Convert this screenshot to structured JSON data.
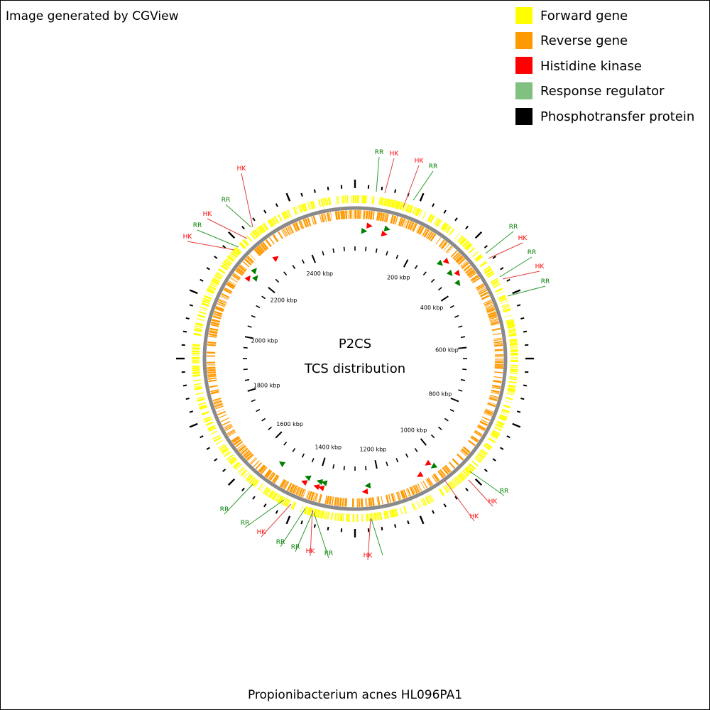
{
  "credit": "Image generated by CGView",
  "organism": "Propionibacterium acnes HL096PA1",
  "center_title": "P2CS",
  "center_subtitle": "TCS distribution",
  "legend": [
    {
      "label": "Forward gene",
      "color": "#ffff00"
    },
    {
      "label": "Reverse gene",
      "color": "#ff9900"
    },
    {
      "label": "Histidine kinase",
      "color": "#ff0000"
    },
    {
      "label": "Response regulator",
      "color": "#80c080"
    },
    {
      "label": "Phosphotransfer protein",
      "color": "#000000"
    }
  ],
  "colors": {
    "forward": "#ffff00",
    "reverse": "#ff9900",
    "backbone": "#8a8a8a",
    "hk": "#ff0000",
    "rr": "#007f00",
    "hk_line": "#e04040",
    "rr_line": "#2e9b2e"
  },
  "genome": {
    "length_kbp": 2560,
    "tick_labels": [
      "200 kbp",
      "400 kbp",
      "600 kbp",
      "800 kbp",
      "1000 kbp",
      "1200 kbp",
      "1400 kbp",
      "1600 kbp",
      "1800 kbp",
      "2000 kbp",
      "2200 kbp",
      "2400 kbp"
    ],
    "tick_label_kbp": [
      200,
      400,
      600,
      800,
      1000,
      1200,
      1400,
      1600,
      1800,
      2000,
      2200,
      2400
    ]
  },
  "tcs_features": [
    {
      "type": "RR",
      "kbp": 30
    },
    {
      "type": "HK",
      "kbp": 45
    },
    {
      "type": "HK",
      "kbp": 95
    },
    {
      "type": "RR",
      "kbp": 100
    },
    {
      "type": "RR",
      "kbp": 300
    },
    {
      "type": "HK",
      "kbp": 310
    },
    {
      "type": "RR",
      "kbp": 345
    },
    {
      "type": "HK",
      "kbp": 360
    },
    {
      "type": "RR",
      "kbp": 385
    },
    {
      "type": "RR",
      "kbp": 1025
    },
    {
      "type": "HK",
      "kbp": 1035
    },
    {
      "type": "HK",
      "kbp": 1075
    },
    {
      "type": "RR",
      "kbp": 1240
    },
    {
      "type": "HK",
      "kbp": 1250
    },
    {
      "type": "RR",
      "kbp": 1380
    },
    {
      "type": "HK",
      "kbp": 1385
    },
    {
      "type": "RR",
      "kbp": 1395
    },
    {
      "type": "HK",
      "kbp": 1400
    },
    {
      "type": "RR",
      "kbp": 1435
    },
    {
      "type": "HK",
      "kbp": 1440
    },
    {
      "type": "RR",
      "kbp": 1530
    },
    {
      "type": "HK",
      "kbp": 2185
    },
    {
      "type": "RR",
      "kbp": 2200
    },
    {
      "type": "RR",
      "kbp": 2215
    },
    {
      "type": "HK",
      "kbp": 2290
    }
  ],
  "callouts": [
    {
      "text": "RR",
      "type": "RR"
    },
    {
      "text": "HK",
      "type": "HK"
    },
    {
      "text": "HK",
      "type": "HK"
    },
    {
      "text": "RR",
      "type": "RR"
    },
    {
      "text": "RR",
      "type": "RR"
    },
    {
      "text": "HK",
      "type": "HK"
    },
    {
      "text": "RR",
      "type": "RR"
    },
    {
      "text": "HK",
      "type": "HK"
    },
    {
      "text": "RR",
      "type": "RR"
    },
    {
      "text": "RR",
      "type": "RR"
    },
    {
      "text": "HK",
      "type": "HK"
    },
    {
      "text": "HK",
      "type": "HK"
    },
    {
      "text": "HK",
      "type": "HK"
    },
    {
      "text": "RR",
      "type": "RR"
    },
    {
      "text": "HK",
      "type": "HK"
    },
    {
      "text": "RR",
      "type": "RR"
    },
    {
      "text": "HK",
      "type": "HK"
    },
    {
      "text": "RR",
      "type": "RR"
    },
    {
      "text": "RR",
      "type": "RR"
    },
    {
      "text": "HK",
      "type": "HK"
    },
    {
      "text": "RR",
      "type": "RR"
    },
    {
      "text": "RR",
      "type": "RR"
    },
    {
      "text": "HK",
      "type": "HK"
    },
    {
      "text": "RR",
      "type": "RR"
    },
    {
      "text": "HK",
      "type": "HK"
    }
  ]
}
